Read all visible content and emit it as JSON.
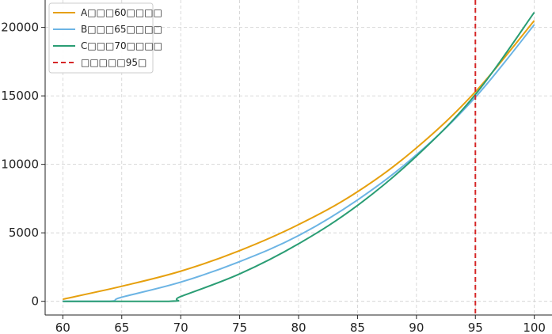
{
  "chart_data": {
    "type": "line",
    "title": "",
    "xlabel": "",
    "ylabel": "",
    "xlim": [
      58.5,
      101.5
    ],
    "ylim": [
      -1000,
      22000
    ],
    "x_ticks": [
      60,
      65,
      70,
      75,
      80,
      85,
      90,
      95,
      100
    ],
    "y_ticks": [
      0,
      5000,
      10000,
      15000,
      20000
    ],
    "x_tick_labels": [
      "60",
      "65",
      "70",
      "75",
      "80",
      "85",
      "90",
      "95",
      "100"
    ],
    "y_tick_labels": [
      "0",
      "5000",
      "10000",
      "15000",
      "20000"
    ],
    "grid": true,
    "grid_style": "dashed",
    "legend_position": "top-left",
    "series": [
      {
        "name": "A□□□60□□□□",
        "color": "#E6A00E",
        "style": "solid",
        "x": [
          60,
          65,
          70,
          75,
          80,
          85,
          90,
          95,
          100
        ],
        "values": [
          150,
          1100,
          2200,
          3700,
          5600,
          8000,
          11200,
          15300,
          20500
        ]
      },
      {
        "name": "B□□□65□□□□",
        "color": "#6CB4E4",
        "style": "solid",
        "x": [
          60,
          64,
          65,
          70,
          75,
          80,
          85,
          90,
          95,
          100
        ],
        "values": [
          0,
          0,
          300,
          1400,
          2900,
          4800,
          7400,
          10700,
          14900,
          20200
        ]
      },
      {
        "name": "C□□□70□□□□",
        "color": "#2A9D74",
        "style": "solid",
        "x": [
          60,
          69,
          70,
          75,
          80,
          85,
          90,
          95,
          100
        ],
        "values": [
          0,
          0,
          350,
          2000,
          4200,
          7000,
          10600,
          15100,
          21100
        ]
      }
    ],
    "annotations": [
      {
        "type": "vline",
        "x": 95,
        "label": "□□□□□95□",
        "color": "#D62728",
        "style": "dashed"
      }
    ]
  }
}
